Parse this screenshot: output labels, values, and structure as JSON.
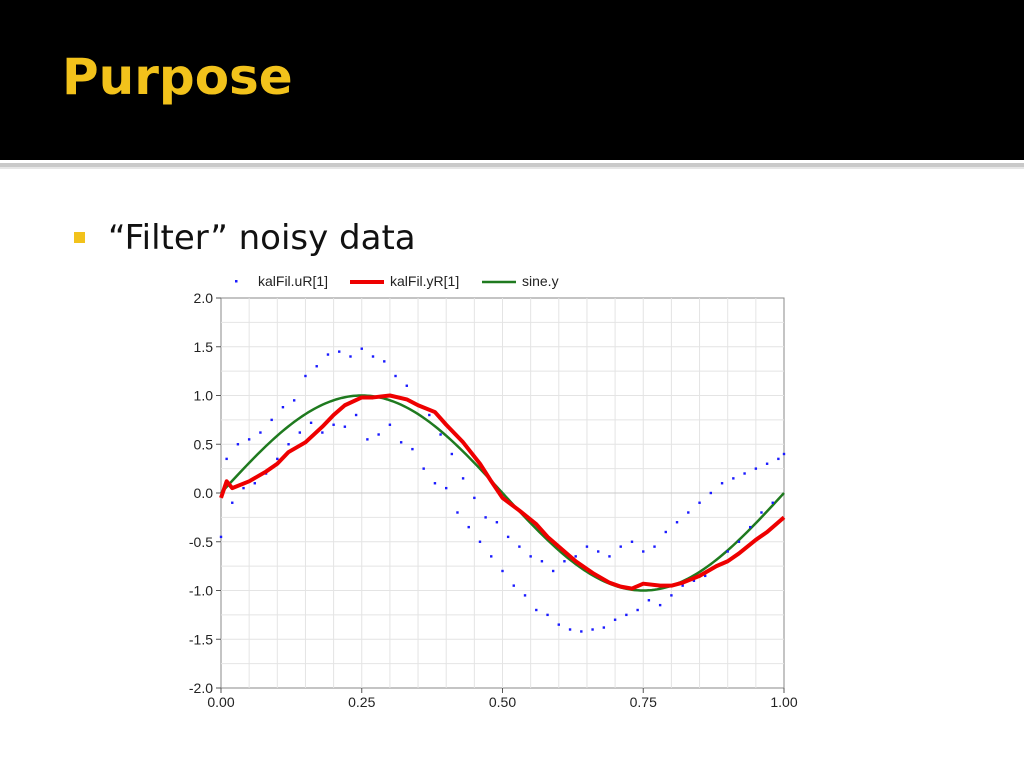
{
  "slide": {
    "title": "Purpose",
    "bullet": "“Filter” noisy data"
  },
  "colors": {
    "title_bar": "#000000",
    "title_text": "#f2c21b",
    "bullet_marker": "#f2c21b",
    "noisy_points": "#1a1aff",
    "filtered_line": "#ee0000",
    "sine_line": "#1f7a1f"
  },
  "chart_data": {
    "type": "line",
    "title": "",
    "xlabel": "",
    "ylabel": "",
    "xlim": [
      0,
      1
    ],
    "ylim": [
      -2,
      2
    ],
    "grid": true,
    "legend_position": "top",
    "x_ticks": [
      "0.00",
      "0.25",
      "0.50",
      "0.75",
      "1.00"
    ],
    "y_ticks": [
      "2.0",
      "1.5",
      "1.0",
      "0.5",
      "0.0",
      "-0.5",
      "-1.0",
      "-1.5",
      "-2.0"
    ],
    "series": [
      {
        "name": "kalFil.uR[1]",
        "style": "points",
        "color": "#1a1aff",
        "description_of_shape": "sine.y plus noise, spread about ±0.5",
        "x": [
          0.0,
          0.01,
          0.02,
          0.03,
          0.04,
          0.05,
          0.06,
          0.07,
          0.08,
          0.09,
          0.1,
          0.11,
          0.12,
          0.13,
          0.14,
          0.15,
          0.16,
          0.17,
          0.18,
          0.19,
          0.2,
          0.21,
          0.22,
          0.23,
          0.24,
          0.25,
          0.26,
          0.27,
          0.28,
          0.29,
          0.3,
          0.31,
          0.32,
          0.33,
          0.34,
          0.35,
          0.36,
          0.37,
          0.38,
          0.39,
          0.4,
          0.41,
          0.42,
          0.43,
          0.44,
          0.45,
          0.46,
          0.47,
          0.48,
          0.49,
          0.5,
          0.51,
          0.52,
          0.53,
          0.54,
          0.55,
          0.56,
          0.57,
          0.58,
          0.59,
          0.6,
          0.61,
          0.62,
          0.63,
          0.64,
          0.65,
          0.66,
          0.67,
          0.68,
          0.69,
          0.7,
          0.71,
          0.72,
          0.73,
          0.74,
          0.75,
          0.76,
          0.77,
          0.78,
          0.79,
          0.8,
          0.81,
          0.82,
          0.83,
          0.84,
          0.85,
          0.86,
          0.87,
          0.88,
          0.89,
          0.9,
          0.91,
          0.92,
          0.93,
          0.94,
          0.95,
          0.96,
          0.97,
          0.98,
          0.99,
          1.0
        ],
        "y": [
          -0.45,
          0.35,
          -0.1,
          0.5,
          0.05,
          0.55,
          0.1,
          0.62,
          0.2,
          0.75,
          0.35,
          0.88,
          0.5,
          0.95,
          0.62,
          1.2,
          0.72,
          1.3,
          0.62,
          1.42,
          0.7,
          1.45,
          0.68,
          1.4,
          0.8,
          1.48,
          0.55,
          1.4,
          0.6,
          1.35,
          0.7,
          1.2,
          0.52,
          1.1,
          0.45,
          0.9,
          0.25,
          0.8,
          0.1,
          0.6,
          0.05,
          0.4,
          -0.2,
          0.15,
          -0.35,
          -0.05,
          -0.5,
          -0.25,
          -0.65,
          -0.3,
          -0.8,
          -0.45,
          -0.95,
          -0.55,
          -1.05,
          -0.65,
          -1.2,
          -0.7,
          -1.25,
          -0.8,
          -1.35,
          -0.7,
          -1.4,
          -0.65,
          -1.42,
          -0.55,
          -1.4,
          -0.6,
          -1.38,
          -0.65,
          -1.3,
          -0.55,
          -1.25,
          -0.5,
          -1.2,
          -0.6,
          -1.1,
          -0.55,
          -1.15,
          -0.4,
          -1.05,
          -0.3,
          -0.95,
          -0.2,
          -0.9,
          -0.1,
          -0.85,
          0.0,
          -0.75,
          0.1,
          -0.6,
          0.15,
          -0.5,
          0.2,
          -0.35,
          0.25,
          -0.2,
          0.3,
          -0.1,
          0.35,
          0.4
        ]
      },
      {
        "name": "kalFil.yR[1]",
        "style": "line",
        "color": "#ee0000",
        "x": [
          0.0,
          0.01,
          0.02,
          0.05,
          0.08,
          0.1,
          0.12,
          0.15,
          0.18,
          0.2,
          0.22,
          0.25,
          0.27,
          0.3,
          0.33,
          0.35,
          0.38,
          0.4,
          0.43,
          0.46,
          0.48,
          0.5,
          0.53,
          0.56,
          0.58,
          0.6,
          0.63,
          0.66,
          0.69,
          0.71,
          0.73,
          0.75,
          0.78,
          0.8,
          0.82,
          0.85,
          0.88,
          0.9,
          0.92,
          0.95,
          0.97,
          1.0
        ],
        "y": [
          -0.05,
          0.12,
          0.05,
          0.12,
          0.22,
          0.3,
          0.42,
          0.52,
          0.68,
          0.8,
          0.9,
          0.98,
          0.98,
          1.0,
          0.96,
          0.9,
          0.83,
          0.7,
          0.52,
          0.3,
          0.12,
          -0.05,
          -0.18,
          -0.32,
          -0.45,
          -0.55,
          -0.7,
          -0.82,
          -0.92,
          -0.96,
          -0.98,
          -0.93,
          -0.95,
          -0.95,
          -0.92,
          -0.85,
          -0.75,
          -0.7,
          -0.62,
          -0.48,
          -0.4,
          -0.25
        ]
      },
      {
        "name": "sine.y",
        "style": "line",
        "color": "#1f7a1f",
        "function": "sin(2*pi*x)",
        "x_range": [
          0,
          1
        ],
        "amplitude": 1
      }
    ]
  }
}
